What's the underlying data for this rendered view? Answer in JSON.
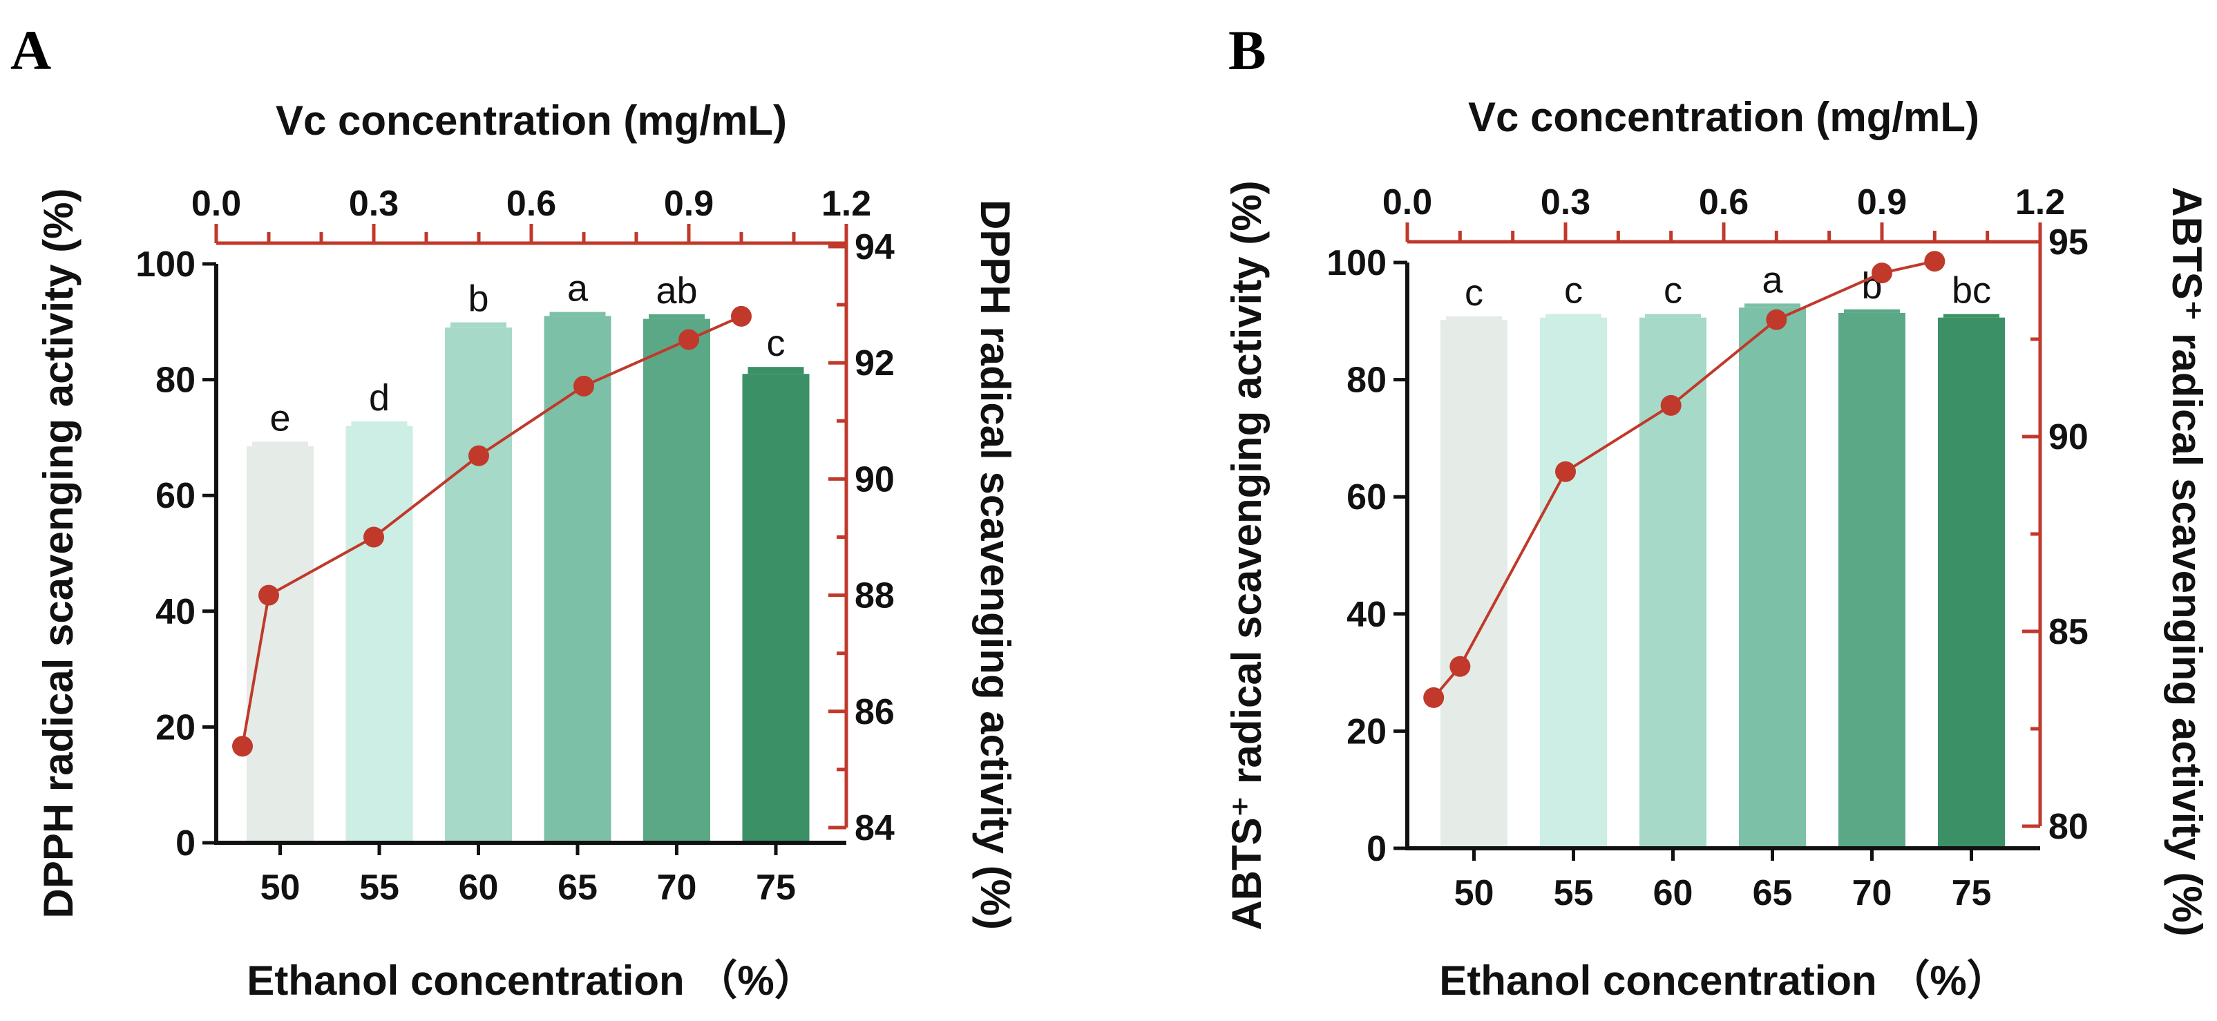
{
  "chart_data": [
    {
      "panel": "A",
      "type": "bar",
      "categories": [
        "50",
        "55",
        "60",
        "65",
        "70",
        "75"
      ],
      "xlabel": "Ethanol concentration （%）",
      "ylabel": "DPPH radical scavenging activity (%)",
      "ylim": [
        0,
        100
      ],
      "yticks": [
        "0",
        "20",
        "40",
        "60",
        "80",
        "100"
      ],
      "values": [
        68.5,
        72,
        89,
        91,
        90.5,
        81
      ],
      "errors": [
        0.8,
        0.8,
        0.9,
        0.7,
        0.8,
        1.2
      ],
      "significance": [
        "e",
        "d",
        "b",
        "a",
        "ab",
        "c"
      ],
      "bar_colors": [
        "#e5ebe7",
        "#cdeee4",
        "#a6d9c7",
        "#7cc1a7",
        "#5ba887",
        "#3b9165"
      ],
      "secondary": {
        "type": "line",
        "color": "#c0392b",
        "top_axis_label": "Vc concentration (mg/mL)",
        "top_axis_range": [
          0,
          1.2
        ],
        "top_ticks": [
          "0.0",
          "0.3",
          "0.6",
          "0.9",
          "1.2"
        ],
        "right_axis_label": "DPPH radical scavenging activity (%)",
        "right_axis_range": [
          84,
          94
        ],
        "right_ticks": [
          "84",
          "86",
          "88",
          "90",
          "92",
          "94"
        ],
        "x": [
          0.05,
          0.1,
          0.3,
          0.5,
          0.7,
          0.9,
          1.0
        ],
        "y": [
          85.4,
          88.0,
          89.0,
          90.4,
          91.6,
          92.4,
          92.8
        ]
      }
    },
    {
      "panel": "B",
      "type": "bar",
      "categories": [
        "50",
        "55",
        "60",
        "65",
        "70",
        "75"
      ],
      "xlabel": "Ethanol concentration （%）",
      "ylabel": "ABTS⁺ radical scavenging activity (%)",
      "ylim": [
        0,
        100
      ],
      "yticks": [
        "0",
        "20",
        "40",
        "60",
        "80",
        "100"
      ],
      "values": [
        90.2,
        90.6,
        90.6,
        92.3,
        91.4,
        90.6
      ],
      "errors": [
        0.6,
        0.6,
        0.6,
        0.7,
        0.6,
        0.6
      ],
      "significance": [
        "c",
        "c",
        "c",
        "a",
        "b",
        "bc"
      ],
      "bar_colors": [
        "#e5ebe7",
        "#cdeee4",
        "#a6d9c7",
        "#7cc1a7",
        "#5ba887",
        "#3b9165"
      ],
      "secondary": {
        "type": "line",
        "color": "#c0392b",
        "top_axis_label": "Vc concentration (mg/mL)",
        "top_axis_range": [
          0,
          1.2
        ],
        "top_ticks": [
          "0.0",
          "0.3",
          "0.6",
          "0.9",
          "1.2"
        ],
        "right_axis_label": "ABTS⁺ radical scavenging activity (%)",
        "right_axis_range": [
          80,
          95
        ],
        "right_ticks": [
          "80",
          "85",
          "90",
          "95"
        ],
        "x": [
          0.05,
          0.1,
          0.3,
          0.5,
          0.7,
          0.9,
          1.0
        ],
        "y": [
          83.3,
          84.1,
          89.1,
          90.8,
          93.0,
          94.2,
          94.5
        ]
      }
    }
  ]
}
